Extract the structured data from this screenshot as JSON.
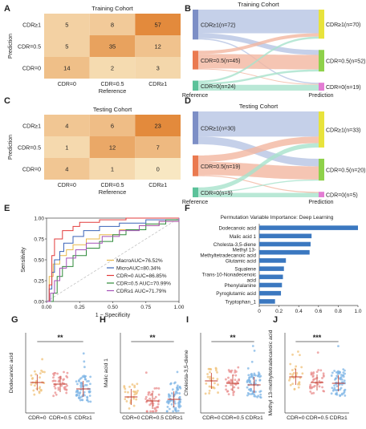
{
  "panel_letters": [
    "A",
    "B",
    "C",
    "D",
    "E",
    "F",
    "G",
    "H",
    "I",
    "J"
  ],
  "chart_data": [
    {
      "id": "A",
      "type": "heatmap",
      "title": "Training Cohort",
      "xlabel": "Reference",
      "ylabel": "Prediction",
      "x_categories": [
        "CDR=0",
        "CDR=0.5",
        "CDR≥1"
      ],
      "y_categories": [
        "CDR≥1",
        "CDR=0.5",
        "CDR=0"
      ],
      "values": [
        [
          5,
          8,
          57
        ],
        [
          5,
          35,
          12
        ],
        [
          14,
          2,
          3
        ]
      ],
      "colors": {
        "low": "#f8e7c2",
        "high": "#e38a3c"
      }
    },
    {
      "id": "B",
      "type": "sankey",
      "title": "Training Cohort",
      "xlabel_left": "Reference",
      "xlabel_right": "Prediction",
      "left": [
        "CDR≥1(n=72)",
        "CDR=0.5(n=45)",
        "CDR=0(n=24)"
      ],
      "right": [
        "CDR≥1(n=70)",
        "CDR=0.5(n=52)",
        "CDR=0(n=19)"
      ],
      "flows": [
        [
          57,
          12,
          3
        ],
        [
          8,
          35,
          2
        ],
        [
          5,
          5,
          14
        ]
      ],
      "left_colors": [
        "#7d8fc6",
        "#ea7a50",
        "#5bc29a"
      ],
      "right_colors": [
        "#e8e33c",
        "#8ed14a",
        "#e37cd3"
      ],
      "flow_colors": [
        "#b7c4e3",
        "#f3b6a0",
        "#a8e2cc"
      ]
    },
    {
      "id": "C",
      "type": "heatmap",
      "title": "Testing Cohort",
      "xlabel": "Reference",
      "ylabel": "Prediction",
      "x_categories": [
        "CDR=0",
        "CDR=0.5",
        "CDR≥1"
      ],
      "y_categories": [
        "CDR≥1",
        "CDR=0.5",
        "CDR=0"
      ],
      "values": [
        [
          4,
          6,
          23
        ],
        [
          1,
          12,
          7
        ],
        [
          4,
          1,
          0
        ]
      ],
      "colors": {
        "low": "#f8e7c2",
        "high": "#e38a3c"
      }
    },
    {
      "id": "D",
      "type": "sankey",
      "title": "Testing Cohort",
      "xlabel_left": "Reference",
      "xlabel_right": "Prediction",
      "left": [
        "CDR≥1(n=30)",
        "CDR=0.5(n=19)",
        "CDR=0(n=9)"
      ],
      "right": [
        "CDR≥1(n=33)",
        "CDR=0.5(n=20)",
        "CDR=0(n=5)"
      ],
      "flows": [
        [
          23,
          7,
          0
        ],
        [
          6,
          12,
          1
        ],
        [
          4,
          1,
          4
        ]
      ],
      "left_colors": [
        "#7d8fc6",
        "#ea7a50",
        "#5bc29a"
      ],
      "right_colors": [
        "#e8e33c",
        "#8ed14a",
        "#e37cd3"
      ],
      "flow_colors": [
        "#b7c4e3",
        "#f3b6a0",
        "#a8e2cc"
      ]
    },
    {
      "id": "E",
      "type": "line",
      "xlabel": "1 − Specificity",
      "ylabel": "Sensitivity",
      "xlim": [
        0,
        1
      ],
      "ylim": [
        0,
        1
      ],
      "x_ticks": [
        "0.00",
        "0.25",
        "0.50",
        "0.75",
        "1.00"
      ],
      "y_ticks": [
        "0.00",
        "0.25",
        "0.50",
        "0.75",
        "1.00"
      ],
      "series": [
        {
          "name": "MacroAUC=76.52%",
          "color": "#e8b94a",
          "points": [
            [
              0,
              0
            ],
            [
              0.02,
              0.3
            ],
            [
              0.05,
              0.45
            ],
            [
              0.1,
              0.55
            ],
            [
              0.15,
              0.62
            ],
            [
              0.2,
              0.68
            ],
            [
              0.3,
              0.75
            ],
            [
              0.4,
              0.8
            ],
            [
              0.55,
              0.86
            ],
            [
              0.7,
              0.91
            ],
            [
              0.85,
              0.96
            ],
            [
              1,
              1
            ]
          ]
        },
        {
          "name": "MicroAUC=80.34%",
          "color": "#3a63b8",
          "points": [
            [
              0,
              0
            ],
            [
              0.02,
              0.15
            ],
            [
              0.04,
              0.35
            ],
            [
              0.06,
              0.5
            ],
            [
              0.1,
              0.6
            ],
            [
              0.13,
              0.7
            ],
            [
              0.2,
              0.78
            ],
            [
              0.28,
              0.85
            ],
            [
              0.4,
              0.9
            ],
            [
              0.55,
              0.94
            ],
            [
              0.75,
              0.98
            ],
            [
              1,
              1
            ]
          ]
        },
        {
          "name": "CDR=0 AUC=86.85%",
          "color": "#e23b3b",
          "points": [
            [
              0,
              0
            ],
            [
              0.02,
              0.2
            ],
            [
              0.04,
              0.55
            ],
            [
              0.06,
              0.75
            ],
            [
              0.12,
              0.85
            ],
            [
              0.2,
              0.9
            ],
            [
              0.25,
              0.95
            ],
            [
              0.4,
              0.98
            ],
            [
              0.6,
              1
            ],
            [
              1,
              1
            ]
          ]
        },
        {
          "name": "CDR=0.5 AUC=70.99%",
          "color": "#2f8a3a",
          "points": [
            [
              0,
              0
            ],
            [
              0.05,
              0.1
            ],
            [
              0.08,
              0.3
            ],
            [
              0.12,
              0.42
            ],
            [
              0.2,
              0.55
            ],
            [
              0.3,
              0.64
            ],
            [
              0.4,
              0.72
            ],
            [
              0.5,
              0.8
            ],
            [
              0.6,
              0.86
            ],
            [
              0.75,
              0.93
            ],
            [
              0.9,
              0.98
            ],
            [
              1,
              1
            ]
          ]
        },
        {
          "name": "CDR≥1 AUC=71.79%",
          "color": "#a552b8",
          "points": [
            [
              0,
              0
            ],
            [
              0.03,
              0.1
            ],
            [
              0.06,
              0.25
            ],
            [
              0.1,
              0.4
            ],
            [
              0.15,
              0.52
            ],
            [
              0.22,
              0.62
            ],
            [
              0.3,
              0.7
            ],
            [
              0.42,
              0.78
            ],
            [
              0.55,
              0.85
            ],
            [
              0.7,
              0.91
            ],
            [
              0.85,
              0.96
            ],
            [
              1,
              1
            ]
          ]
        }
      ]
    },
    {
      "id": "F",
      "type": "bar",
      "title": "Permutation Variable Importance: Deep Learning",
      "categories": [
        "Dodecanoic acid",
        "Malic acid 1",
        "Cholesta-3,5-diene",
        "Methyl 13-methyltetradecanoic acid",
        "Glutamic acid",
        "Squalene",
        "Trans-10-Nonadecenoic acid",
        "Phenylalanine",
        "Pyroglutamic acid",
        "Tryptophan_1"
      ],
      "category_lines": [
        [
          "Dodecanoic acid"
        ],
        [
          "Malic acid 1"
        ],
        [
          "Cholesta-3,5-diene"
        ],
        [
          "Methyl 13-",
          "Methyltetradecanoic acid"
        ],
        [
          "Glutamic acid"
        ],
        [
          "Squalene"
        ],
        [
          "Trans-10-Nonadecenoic",
          "acid"
        ],
        [
          "Phenylalanine"
        ],
        [
          "Pyroglutamic acid"
        ],
        [
          "Tryptophan_1"
        ]
      ],
      "values": [
        1.0,
        0.53,
        0.52,
        0.51,
        0.27,
        0.25,
        0.24,
        0.23,
        0.22,
        0.16
      ],
      "xlim": [
        0,
        1
      ],
      "x_ticks": [
        "0",
        "0.2",
        "0.4",
        "0.6",
        "0.8",
        "1.0"
      ],
      "color": "#3b78c0"
    },
    {
      "id": "G",
      "type": "scatter",
      "ylabel": "Dodecanoic acid",
      "categories": [
        "CDR=0",
        "CDR=0.5",
        "CDR≥1"
      ],
      "significance": "**",
      "medians": [
        0.38,
        0.36,
        0.3
      ]
    },
    {
      "id": "H",
      "type": "scatter",
      "ylabel": "Malic acid 1",
      "categories": [
        "CDR=0",
        "CDR=0.5",
        "CDR≥1"
      ],
      "significance": "**",
      "medians": [
        0.2,
        0.15,
        0.17
      ]
    },
    {
      "id": "I",
      "type": "scatter",
      "ylabel": "Cholesta-3,5-diene",
      "categories": [
        "CDR=0",
        "CDR=0.5",
        "CDR≥1"
      ],
      "significance": "**",
      "medians": [
        0.4,
        0.37,
        0.35
      ]
    },
    {
      "id": "J",
      "type": "scatter",
      "ylabel": "Methyl 13-methyltetradecanoic acid",
      "categories": [
        "CDR=0",
        "CDR=0.5",
        "CDR≥1"
      ],
      "significance": "***",
      "medians": [
        0.45,
        0.38,
        0.37
      ]
    }
  ],
  "scatter_colors": [
    "#f0c27a",
    "#ea8f8f",
    "#7fb6e6"
  ]
}
